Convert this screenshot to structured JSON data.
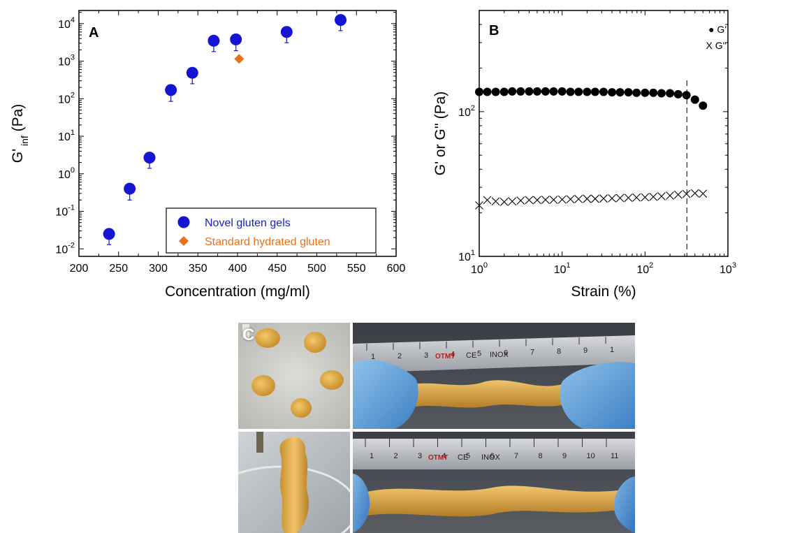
{
  "chart_data": [
    {
      "panel": "A",
      "type": "scatter",
      "xlabel": "Concentration (mg/ml)",
      "ylabel_main": "G'",
      "ylabel_sub": "inf",
      "ylabel_unit": "(Pa)",
      "xlim": [
        200,
        600
      ],
      "xticks": [
        200,
        250,
        300,
        350,
        400,
        450,
        500,
        550,
        600
      ],
      "ylim_log10": [
        -2.2,
        4.35
      ],
      "yscale": "log",
      "ytick_exponents": [
        -2,
        -1,
        0,
        1,
        2,
        3,
        4
      ],
      "legend_position": "bottom-right",
      "series": [
        {
          "name": "Novel gluten gels",
          "marker": "circle",
          "color": "#1414d2",
          "points": [
            {
              "x": 238,
              "y": 0.025,
              "err_low": 0.013
            },
            {
              "x": 264,
              "y": 0.4,
              "err_low": 0.2
            },
            {
              "x": 289,
              "y": 2.7,
              "err_low": 1.4
            },
            {
              "x": 316,
              "y": 170,
              "err_low": 85
            },
            {
              "x": 343,
              "y": 490,
              "err_low": 250
            },
            {
              "x": 370,
              "y": 3500,
              "err_low": 1800
            },
            {
              "x": 398,
              "y": 3800,
              "err_low": 1900
            },
            {
              "x": 462,
              "y": 6000,
              "err_low": 3100
            },
            {
              "x": 530,
              "y": 12500,
              "err_low": 6500
            }
          ]
        },
        {
          "name": "Standard hydrated gluten",
          "marker": "diamond",
          "color": "#e8701a",
          "points": [
            {
              "x": 402,
              "y": 1150
            }
          ]
        }
      ]
    },
    {
      "panel": "B",
      "type": "scatter",
      "xlabel": "Strain (%)",
      "ylabel": "G' or G'' (Pa)",
      "xscale": "log",
      "yscale": "log",
      "xlim": [
        1,
        1000
      ],
      "ylim": [
        10,
        500
      ],
      "xtick_exponents": [
        0,
        1,
        2,
        3
      ],
      "ytick_exponents": [
        1,
        2
      ],
      "legend_position": "top-right",
      "vline_x": 320,
      "series": [
        {
          "name": "G'",
          "legend_symbol": "●",
          "marker": "filled-circle",
          "color": "#000000",
          "points": [
            [
              1.0,
              137
            ],
            [
              1.25,
              137
            ],
            [
              1.58,
              137
            ],
            [
              2.0,
              137
            ],
            [
              2.5,
              138
            ],
            [
              3.16,
              138
            ],
            [
              4.0,
              138
            ],
            [
              5.0,
              138
            ],
            [
              6.3,
              138
            ],
            [
              7.9,
              138
            ],
            [
              10,
              138
            ],
            [
              12.6,
              137
            ],
            [
              15.8,
              137
            ],
            [
              20,
              137
            ],
            [
              25,
              137
            ],
            [
              31.6,
              137
            ],
            [
              40,
              136
            ],
            [
              50,
              136
            ],
            [
              63,
              136
            ],
            [
              79,
              135
            ],
            [
              100,
              135
            ],
            [
              126,
              135
            ],
            [
              158,
              134
            ],
            [
              200,
              134
            ],
            [
              251,
              132
            ],
            [
              316,
              130
            ],
            [
              400,
              121
            ],
            [
              500,
              110
            ]
          ]
        },
        {
          "name": "G''",
          "legend_symbol": "X",
          "marker": "x",
          "color": "#000000",
          "points": [
            [
              1.0,
              22.5
            ],
            [
              1.25,
              24.5
            ],
            [
              1.58,
              24.0
            ],
            [
              2.0,
              23.8
            ],
            [
              2.5,
              24.0
            ],
            [
              3.16,
              24.3
            ],
            [
              4.0,
              24.5
            ],
            [
              5.0,
              24.5
            ],
            [
              6.3,
              24.6
            ],
            [
              7.9,
              24.6
            ],
            [
              10,
              24.7
            ],
            [
              12.6,
              24.8
            ],
            [
              15.8,
              24.9
            ],
            [
              20,
              25.0
            ],
            [
              25,
              25.0
            ],
            [
              31.6,
              25.1
            ],
            [
              40,
              25.2
            ],
            [
              50,
              25.3
            ],
            [
              63,
              25.4
            ],
            [
              79,
              25.5
            ],
            [
              100,
              25.6
            ],
            [
              126,
              25.8
            ],
            [
              158,
              26.0
            ],
            [
              200,
              26.3
            ],
            [
              251,
              26.7
            ],
            [
              316,
              27.0
            ],
            [
              400,
              27.3
            ],
            [
              500,
              27.1
            ]
          ]
        }
      ]
    }
  ],
  "photos": {
    "panel_label": "C",
    "ruler_top_numbers": [
      "1",
      "2",
      "3",
      "4",
      "5",
      "6",
      "7",
      "8",
      "9",
      "1"
    ],
    "ruler_bottom_numbers": [
      "1",
      "2",
      "3",
      "4",
      "5",
      "6",
      "7",
      "8",
      "9",
      "10",
      "11"
    ],
    "ruler_brand": "OTMT",
    "ruler_ce": "CE",
    "ruler_inox": "INOX"
  }
}
